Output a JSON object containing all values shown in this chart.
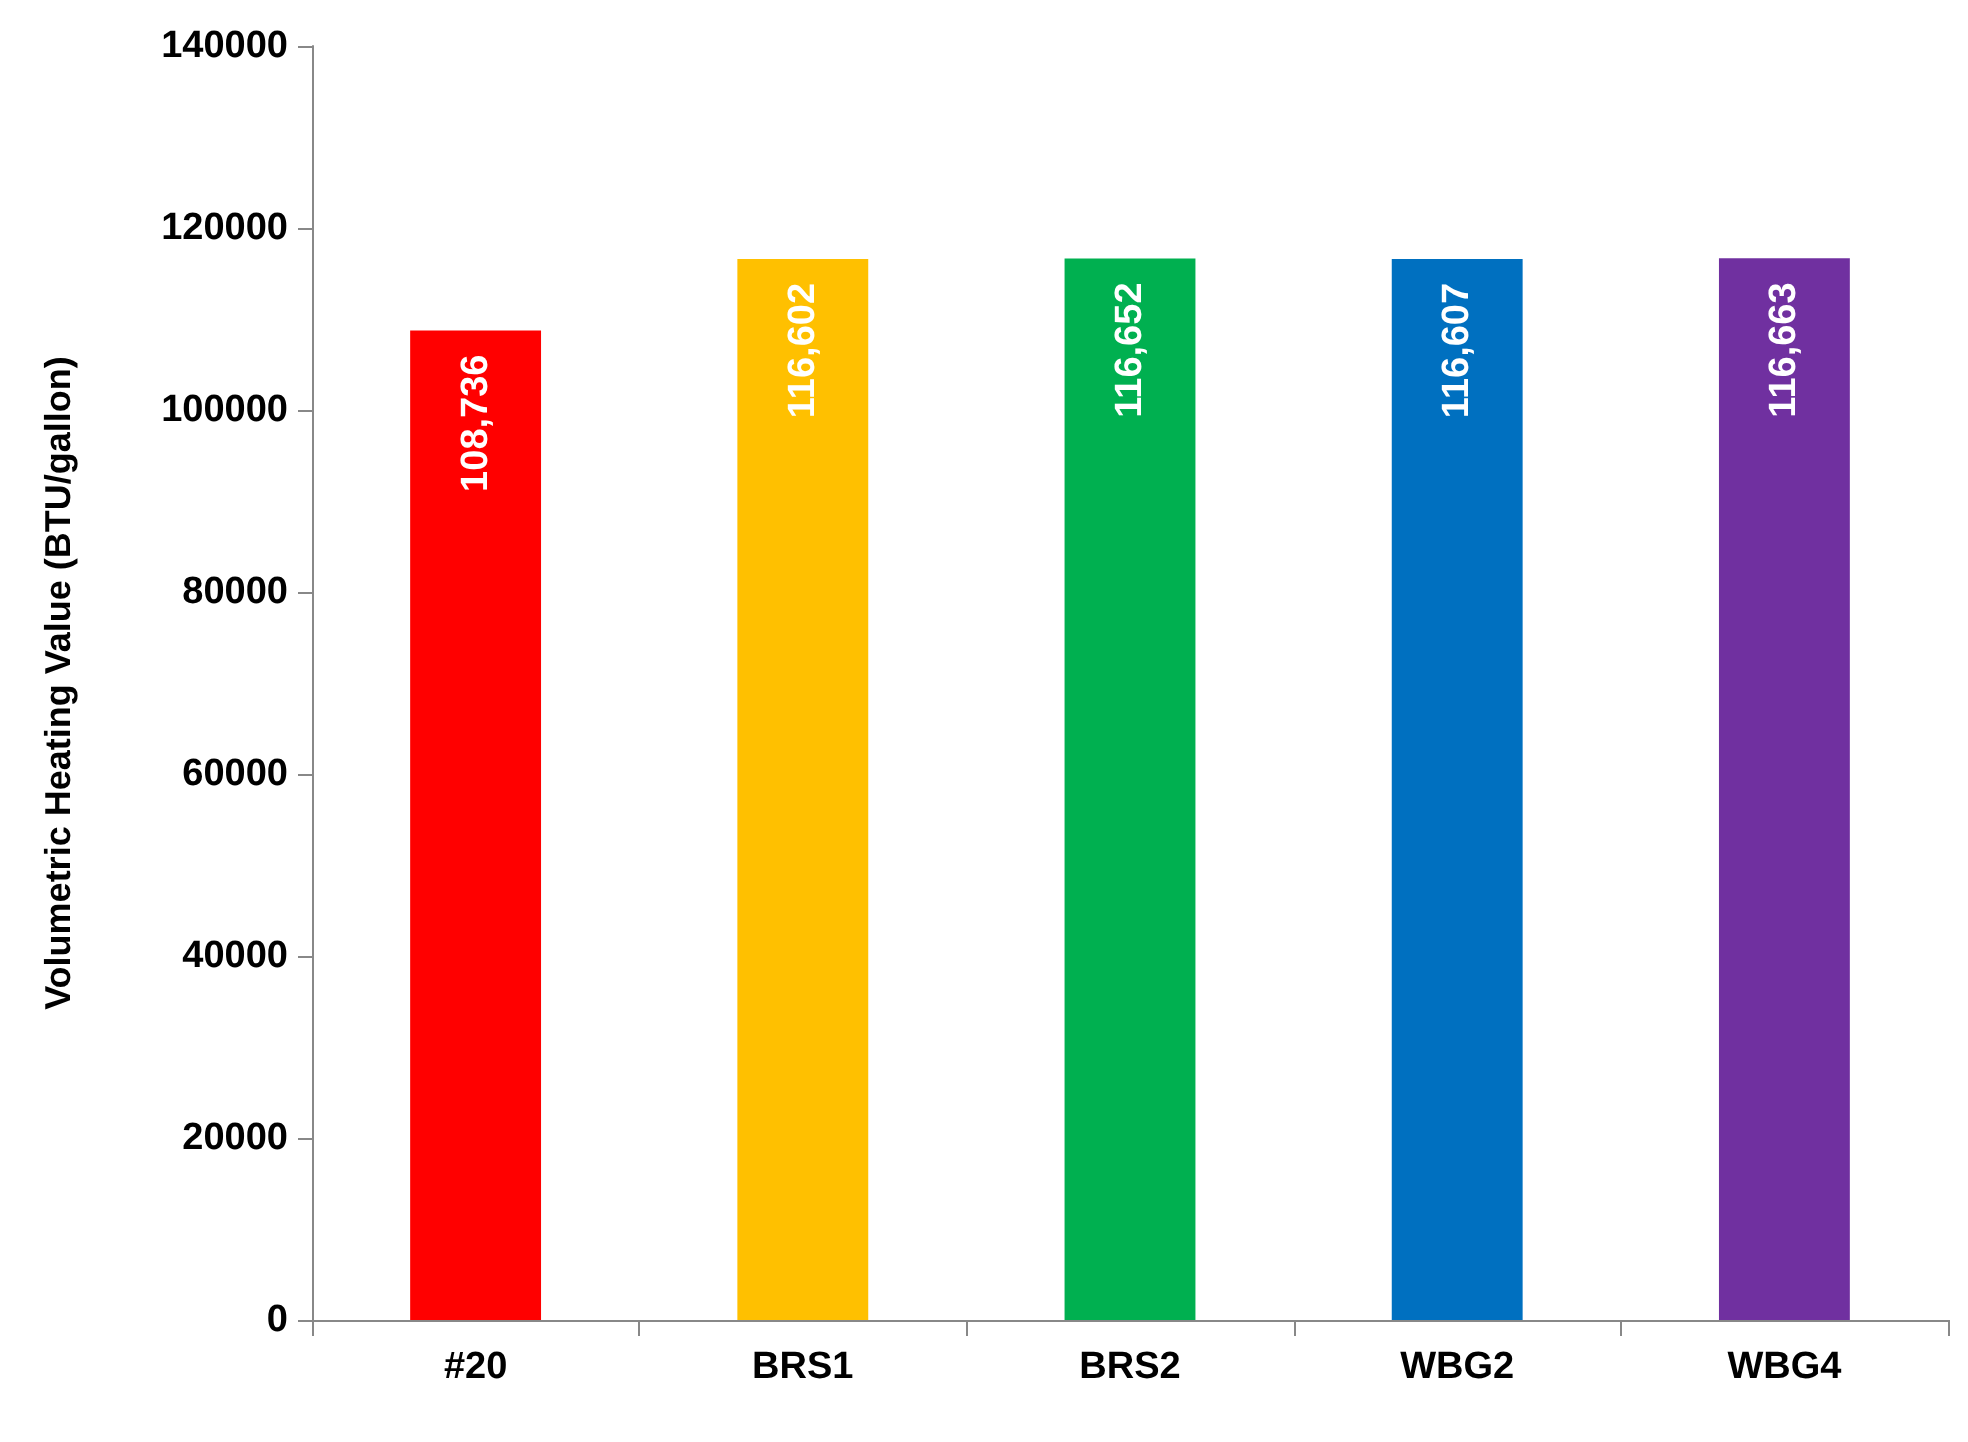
{
  "chart_data": {
    "type": "bar",
    "ylabel": "Volumetric Heating Value (BTU/gallon)",
    "categories": [
      "#20",
      "BRS1",
      "BRS2",
      "WBG2",
      "WBG4"
    ],
    "values": [
      108736,
      116602,
      116652,
      116607,
      116663
    ],
    "value_labels": [
      "108,736",
      "116,602",
      "116,652",
      "116,607",
      "116,663"
    ],
    "colors": [
      "#ff0000",
      "#ffc000",
      "#00b050",
      "#0070c0",
      "#7030a0"
    ],
    "ylim": [
      0,
      140000
    ],
    "yticks": [
      0,
      20000,
      40000,
      60000,
      80000,
      100000,
      120000,
      140000
    ],
    "grid": false
  }
}
